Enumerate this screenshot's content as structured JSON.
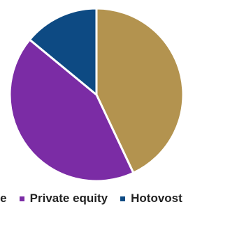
{
  "chart_data": {
    "type": "pie",
    "title": "",
    "start_angle_deg": 0,
    "direction": "clockwise",
    "slices": [
      {
        "label": "Akcie",
        "value": 43,
        "color": "#B3934F"
      },
      {
        "label": "Private equity",
        "value": 43,
        "color": "#7B2CA5"
      },
      {
        "label": "Hotovost",
        "value": 14,
        "color": "#0D4A83"
      }
    ],
    "legend": {
      "position": "bottom",
      "items": [
        {
          "label": "Akcie",
          "visible_text": "cie",
          "color": "#B3934F"
        },
        {
          "label": "Private equity",
          "visible_text": "Private equity",
          "color": "#7B2CA5"
        },
        {
          "label": "Hotovost",
          "visible_text": "Hotovost",
          "color": "#0D4A83"
        }
      ]
    }
  }
}
